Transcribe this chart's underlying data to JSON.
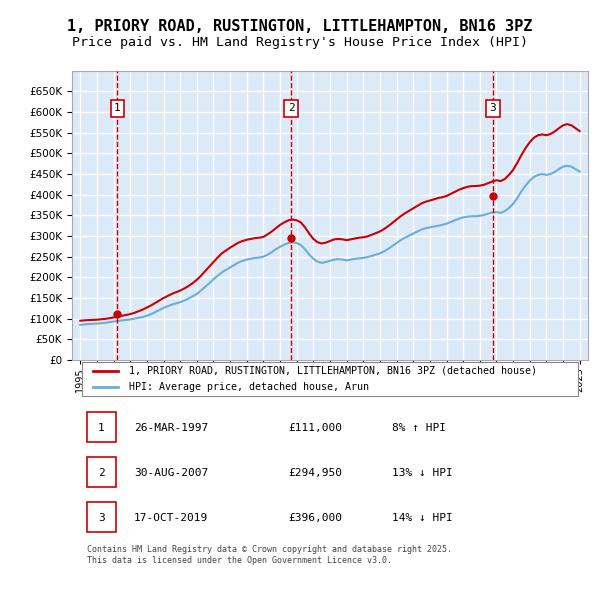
{
  "title": "1, PRIORY ROAD, RUSTINGTON, LITTLEHAMPTON, BN16 3PZ",
  "subtitle": "Price paid vs. HM Land Registry's House Price Index (HPI)",
  "title_fontsize": 11,
  "subtitle_fontsize": 9.5,
  "background_color": "#ffffff",
  "plot_bg_color": "#dce9f7",
  "grid_color": "#ffffff",
  "ylim": [
    0,
    700000
  ],
  "yticks": [
    0,
    50000,
    100000,
    150000,
    200000,
    250000,
    300000,
    350000,
    400000,
    450000,
    500000,
    550000,
    600000,
    650000
  ],
  "xlabel": "",
  "ylabel": "",
  "sale_dates": [
    1997.23,
    2007.66,
    2019.79
  ],
  "sale_prices": [
    111000,
    294950,
    396000
  ],
  "sale_labels": [
    "1",
    "2",
    "3"
  ],
  "vline_color": "#cc0000",
  "vline_style": "--",
  "sale_marker_color": "#cc0000",
  "hpi_line_color": "#6baed6",
  "price_line_color": "#cc0000",
  "legend_label_price": "1, PRIORY ROAD, RUSTINGTON, LITTLEHAMPTON, BN16 3PZ (detached house)",
  "legend_label_hpi": "HPI: Average price, detached house, Arun",
  "table_entries": [
    {
      "num": "1",
      "date": "26-MAR-1997",
      "price": "£111,000",
      "pct": "8% ↑ HPI"
    },
    {
      "num": "2",
      "date": "30-AUG-2007",
      "price": "£294,950",
      "pct": "13% ↓ HPI"
    },
    {
      "num": "3",
      "date": "17-OCT-2019",
      "price": "£396,000",
      "pct": "14% ↓ HPI"
    }
  ],
  "footer": "Contains HM Land Registry data © Crown copyright and database right 2025.\nThis data is licensed under the Open Government Licence v3.0.",
  "hpi_x": [
    1995.0,
    1995.25,
    1995.5,
    1995.75,
    1996.0,
    1996.25,
    1996.5,
    1996.75,
    1997.0,
    1997.25,
    1997.5,
    1997.75,
    1998.0,
    1998.25,
    1998.5,
    1998.75,
    1999.0,
    1999.25,
    1999.5,
    1999.75,
    2000.0,
    2000.25,
    2000.5,
    2000.75,
    2001.0,
    2001.25,
    2001.5,
    2001.75,
    2002.0,
    2002.25,
    2002.5,
    2002.75,
    2003.0,
    2003.25,
    2003.5,
    2003.75,
    2004.0,
    2004.25,
    2004.5,
    2004.75,
    2005.0,
    2005.25,
    2005.5,
    2005.75,
    2006.0,
    2006.25,
    2006.5,
    2006.75,
    2007.0,
    2007.25,
    2007.5,
    2007.75,
    2008.0,
    2008.25,
    2008.5,
    2008.75,
    2009.0,
    2009.25,
    2009.5,
    2009.75,
    2010.0,
    2010.25,
    2010.5,
    2010.75,
    2011.0,
    2011.25,
    2011.5,
    2011.75,
    2012.0,
    2012.25,
    2012.5,
    2012.75,
    2013.0,
    2013.25,
    2013.5,
    2013.75,
    2014.0,
    2014.25,
    2014.5,
    2014.75,
    2015.0,
    2015.25,
    2015.5,
    2015.75,
    2016.0,
    2016.25,
    2016.5,
    2016.75,
    2017.0,
    2017.25,
    2017.5,
    2017.75,
    2018.0,
    2018.25,
    2018.5,
    2018.75,
    2019.0,
    2019.25,
    2019.5,
    2019.75,
    2020.0,
    2020.25,
    2020.5,
    2020.75,
    2021.0,
    2021.25,
    2021.5,
    2021.75,
    2022.0,
    2022.25,
    2022.5,
    2022.75,
    2023.0,
    2023.25,
    2023.5,
    2023.75,
    2024.0,
    2024.25,
    2024.5,
    2024.75,
    2025.0
  ],
  "hpi_y": [
    85000,
    86000,
    87000,
    87500,
    88000,
    89000,
    90000,
    91500,
    93000,
    94500,
    96000,
    97000,
    98000,
    100000,
    102000,
    104000,
    107000,
    111000,
    116000,
    121000,
    126000,
    130000,
    134000,
    137000,
    140000,
    144000,
    149000,
    154000,
    160000,
    168000,
    177000,
    186000,
    195000,
    204000,
    212000,
    218000,
    224000,
    230000,
    236000,
    240000,
    243000,
    245000,
    247000,
    248000,
    250000,
    255000,
    261000,
    268000,
    274000,
    279000,
    283000,
    285000,
    283000,
    278000,
    268000,
    255000,
    245000,
    238000,
    235000,
    237000,
    240000,
    243000,
    244000,
    243000,
    241000,
    243000,
    245000,
    246000,
    247000,
    249000,
    252000,
    255000,
    258000,
    263000,
    269000,
    276000,
    283000,
    290000,
    296000,
    301000,
    306000,
    311000,
    316000,
    319000,
    321000,
    323000,
    325000,
    327000,
    330000,
    334000,
    338000,
    342000,
    345000,
    347000,
    348000,
    348000,
    349000,
    351000,
    354000,
    357000,
    358000,
    356000,
    360000,
    368000,
    378000,
    392000,
    408000,
    422000,
    434000,
    443000,
    448000,
    450000,
    448000,
    450000,
    455000,
    462000,
    468000,
    470000,
    468000,
    462000,
    456000
  ],
  "price_x": [
    1995.0,
    1995.25,
    1995.5,
    1995.75,
    1996.0,
    1996.25,
    1996.5,
    1996.75,
    1997.0,
    1997.25,
    1997.5,
    1997.75,
    1998.0,
    1998.25,
    1998.5,
    1998.75,
    1999.0,
    1999.25,
    1999.5,
    1999.75,
    2000.0,
    2000.25,
    2000.5,
    2000.75,
    2001.0,
    2001.25,
    2001.5,
    2001.75,
    2002.0,
    2002.25,
    2002.5,
    2002.75,
    2003.0,
    2003.25,
    2003.5,
    2003.75,
    2004.0,
    2004.25,
    2004.5,
    2004.75,
    2005.0,
    2005.25,
    2005.5,
    2005.75,
    2006.0,
    2006.25,
    2006.5,
    2006.75,
    2007.0,
    2007.25,
    2007.5,
    2007.75,
    2008.0,
    2008.25,
    2008.5,
    2008.75,
    2009.0,
    2009.25,
    2009.5,
    2009.75,
    2010.0,
    2010.25,
    2010.5,
    2010.75,
    2011.0,
    2011.25,
    2011.5,
    2011.75,
    2012.0,
    2012.25,
    2012.5,
    2012.75,
    2013.0,
    2013.25,
    2013.5,
    2013.75,
    2014.0,
    2014.25,
    2014.5,
    2014.75,
    2015.0,
    2015.25,
    2015.5,
    2015.75,
    2016.0,
    2016.25,
    2016.5,
    2016.75,
    2017.0,
    2017.25,
    2017.5,
    2017.75,
    2018.0,
    2018.25,
    2018.5,
    2018.75,
    2019.0,
    2019.25,
    2019.5,
    2019.75,
    2020.0,
    2020.25,
    2020.5,
    2020.75,
    2021.0,
    2021.25,
    2021.5,
    2021.75,
    2022.0,
    2022.25,
    2022.5,
    2022.75,
    2023.0,
    2023.25,
    2023.5,
    2023.75,
    2024.0,
    2024.25,
    2024.5,
    2024.75,
    2025.0
  ],
  "price_y": [
    95000,
    96000,
    96500,
    97000,
    97500,
    98500,
    99500,
    101000,
    103000,
    105000,
    107000,
    109000,
    111000,
    114000,
    118000,
    122000,
    127000,
    132000,
    138000,
    144000,
    150000,
    155000,
    160000,
    164000,
    168000,
    173000,
    179000,
    186000,
    194000,
    204000,
    215000,
    226000,
    237000,
    248000,
    258000,
    265000,
    272000,
    278000,
    284000,
    288000,
    291000,
    293000,
    295000,
    296000,
    298000,
    304000,
    311000,
    319000,
    327000,
    333000,
    338000,
    340000,
    338000,
    333000,
    321000,
    306000,
    293000,
    285000,
    282000,
    284000,
    288000,
    292000,
    293000,
    292000,
    290000,
    292000,
    294000,
    296000,
    297000,
    299000,
    303000,
    307000,
    311000,
    317000,
    324000,
    332000,
    340000,
    348000,
    355000,
    361000,
    367000,
    373000,
    379000,
    383000,
    386000,
    389000,
    392000,
    394000,
    397000,
    402000,
    407000,
    412000,
    416000,
    419000,
    421000,
    421000,
    422000,
    424000,
    428000,
    432000,
    435000,
    433000,
    438000,
    448000,
    460000,
    477000,
    496000,
    513000,
    527000,
    538000,
    544000,
    546000,
    544000,
    547000,
    553000,
    561000,
    568000,
    571000,
    568000,
    561000,
    554000
  ]
}
